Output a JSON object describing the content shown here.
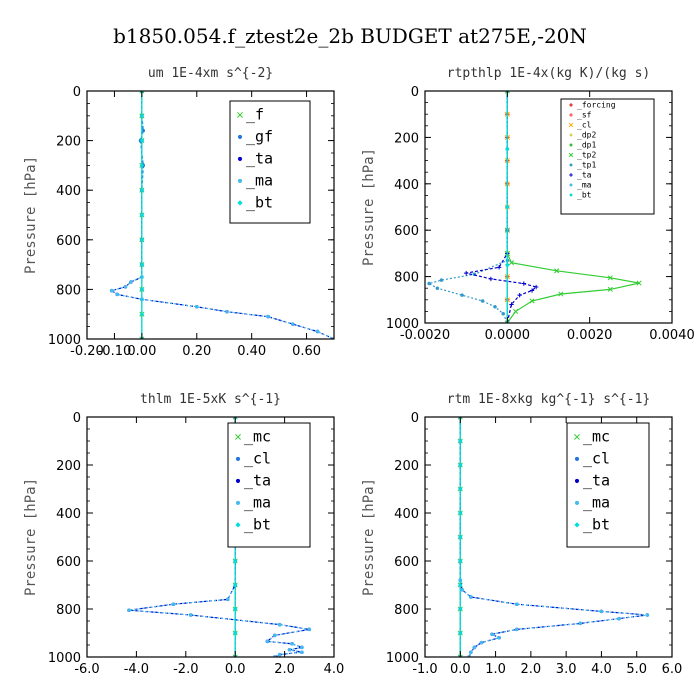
{
  "title": "b1850.054.f_ztest2e_2b  BUDGET at275E,-20N",
  "chart_data": [
    {
      "type": "line",
      "title": "um   1E-4xm s^{-2}",
      "ylabel": "Pressure [hPa]",
      "xlim": [
        -0.2,
        0.7
      ],
      "ylim": [
        1000,
        0
      ],
      "xticks": [
        "-0.20",
        "-0.10",
        "0.00",
        "0.20",
        "0.40",
        "0.60"
      ],
      "xtick_values": [
        -0.2,
        -0.1,
        0.0,
        0.2,
        0.4,
        0.6
      ],
      "yticks": [
        0,
        200,
        400,
        600,
        800,
        1000
      ],
      "legend": [
        "_f",
        "_gf",
        "_ta",
        "_ma",
        "_bt"
      ],
      "series": [
        {
          "name": "_f",
          "color": "#33cc33",
          "marker": "x",
          "dash": "none",
          "x": [
            0,
            0,
            0,
            0,
            0,
            0,
            0,
            0,
            0,
            0,
            0
          ],
          "y": [
            0,
            100,
            200,
            300,
            400,
            500,
            600,
            700,
            800,
            900,
            1000
          ]
        },
        {
          "name": "_gf",
          "color": "#2277dd",
          "marker": "dot",
          "dash": "3,2",
          "x": [
            0,
            0,
            0.005,
            -0.005,
            0.005,
            0,
            0,
            0,
            0,
            0,
            0
          ],
          "y": [
            0,
            100,
            160,
            200,
            300,
            400,
            500,
            600,
            700,
            800,
            1000
          ]
        },
        {
          "name": "_ta",
          "color": "#0000cc",
          "marker": "dot",
          "dash": "3,2",
          "x": [
            0,
            0,
            0,
            0,
            0,
            0,
            -0.04,
            -0.06,
            -0.11,
            -0.09,
            0.0,
            0.2,
            0.31,
            0.46,
            0.55,
            0.64,
            0.7
          ],
          "y": [
            0,
            200,
            400,
            600,
            700,
            750,
            770,
            790,
            805,
            820,
            840,
            870,
            890,
            910,
            940,
            970,
            1000
          ]
        },
        {
          "name": "_ma",
          "color": "#44bbee",
          "marker": "dot",
          "dash": "2,2",
          "x": [
            0,
            0,
            0,
            0,
            0,
            0,
            -0.04,
            -0.06,
            -0.11,
            -0.09,
            0.0,
            0.2,
            0.31,
            0.46,
            0.55,
            0.64,
            0.7
          ],
          "y": [
            0,
            200,
            400,
            600,
            700,
            750,
            770,
            790,
            805,
            820,
            840,
            870,
            890,
            910,
            940,
            970,
            1000
          ]
        },
        {
          "name": "_bt",
          "color": "#00dddd",
          "marker": "diamond",
          "dash": "none",
          "x": [
            0,
            0,
            0,
            0,
            0,
            0,
            0,
            0,
            0,
            0,
            0
          ],
          "y": [
            0,
            100,
            200,
            300,
            400,
            500,
            600,
            700,
            800,
            900,
            1000
          ]
        }
      ]
    },
    {
      "type": "line",
      "title": "rtpthlp   1E-4x(kg K)/(kg s)",
      "ylabel": "Pressure [hPa]",
      "xlim": [
        -0.002,
        0.004
      ],
      "ylim": [
        1000,
        0
      ],
      "xticks": [
        "-0.0020",
        "0.0000",
        "0.0020",
        "0.0040"
      ],
      "xtick_values": [
        -0.002,
        0.0,
        0.002,
        0.004
      ],
      "yticks": [
        0,
        200,
        400,
        600,
        800,
        1000
      ],
      "legend": [
        "_forcing",
        "_sf",
        "_cl",
        "_dp2",
        "_dp1",
        "_tp2",
        "_tp1",
        "_ta",
        "_ma",
        "_bt"
      ],
      "series": [
        {
          "name": "_forcing",
          "color": "#dd0000",
          "marker": "plus",
          "dash": "none",
          "x": [
            0,
            0,
            0,
            0,
            0,
            0,
            0,
            0,
            0,
            0,
            0
          ],
          "y": [
            0,
            100,
            200,
            300,
            400,
            500,
            600,
            700,
            800,
            900,
            1000
          ]
        },
        {
          "name": "_sf",
          "color": "#ff3333",
          "marker": "plus",
          "dash": "none",
          "x": [
            0,
            0,
            0,
            0,
            0,
            0,
            0,
            0,
            0,
            0,
            0
          ],
          "y": [
            0,
            100,
            200,
            300,
            400,
            500,
            600,
            700,
            800,
            900,
            1000
          ]
        },
        {
          "name": "_cl",
          "color": "#ffaa00",
          "marker": "x",
          "dash": "none",
          "x": [
            0,
            0,
            0,
            0,
            0,
            0,
            0,
            0,
            0,
            0,
            0
          ],
          "y": [
            0,
            100,
            200,
            300,
            400,
            500,
            600,
            700,
            800,
            900,
            1000
          ]
        },
        {
          "name": "_dp2",
          "color": "#ddcc55",
          "marker": "dot",
          "dash": "none",
          "x": [
            0,
            0,
            0,
            0,
            0
          ],
          "y": [
            0,
            250,
            500,
            750,
            1000
          ]
        },
        {
          "name": "_dp1",
          "color": "#33bb33",
          "marker": "dot",
          "dash": "none",
          "x": [
            0,
            0,
            0,
            0,
            0
          ],
          "y": [
            0,
            250,
            500,
            750,
            1000
          ]
        },
        {
          "name": "_tp2",
          "color": "#33cc33",
          "marker": "x",
          "dash": "none",
          "x": [
            0,
            0,
            0,
            0.0001,
            0.0012,
            0.0025,
            0.0032,
            0.0025,
            0.0013,
            0.0006,
            0.0002,
            0
          ],
          "y": [
            0,
            600,
            700,
            740,
            775,
            805,
            828,
            855,
            875,
            905,
            950,
            1000
          ]
        },
        {
          "name": "_tp1",
          "color": "#3399cc",
          "marker": "dot",
          "dash": "2,2",
          "x": [
            0,
            0,
            0,
            -0.0008,
            -0.0016,
            -0.0019,
            -0.0017,
            -0.0011,
            -0.0006,
            -0.0003,
            -0.0001,
            0
          ],
          "y": [
            0,
            600,
            730,
            790,
            815,
            830,
            850,
            880,
            905,
            930,
            960,
            1000
          ]
        },
        {
          "name": "_ta",
          "color": "#0000cc",
          "marker": "plus",
          "dash": "3,2",
          "x": [
            0,
            0,
            -0.0002,
            -0.001,
            -0.0004,
            0.0004,
            0.0007,
            0.0006,
            0.0003,
            0.0001,
            0
          ],
          "y": [
            0,
            700,
            760,
            785,
            810,
            830,
            845,
            860,
            880,
            920,
            1000
          ]
        },
        {
          "name": "_ma",
          "color": "#44bbee",
          "marker": "dot",
          "dash": "2,2",
          "x": [
            0,
            0,
            0,
            0,
            0
          ],
          "y": [
            0,
            250,
            500,
            750,
            1000
          ]
        },
        {
          "name": "_bt",
          "color": "#00dddd",
          "marker": "diamond",
          "dash": "none",
          "x": [
            0,
            0,
            0,
            0,
            0
          ],
          "y": [
            0,
            250,
            500,
            750,
            1000
          ]
        }
      ]
    },
    {
      "type": "line",
      "title": "thlm   1E-5xK s^{-1}",
      "ylabel": "Pressure [hPa]",
      "xlim": [
        -6.0,
        4.0
      ],
      "ylim": [
        1000,
        0
      ],
      "xticks": [
        "-6.0",
        "-4.0",
        "-2.0",
        "0.0",
        "2.0",
        "4.0"
      ],
      "xtick_values": [
        -6,
        -4,
        -2,
        0,
        2,
        4
      ],
      "yticks": [
        0,
        200,
        400,
        600,
        800,
        1000
      ],
      "legend": [
        "_mc",
        "_cl",
        "_ta",
        "_ma",
        "_bt"
      ],
      "series": [
        {
          "name": "_mc",
          "color": "#33cc33",
          "marker": "x",
          "dash": "none",
          "x": [
            0,
            0,
            0,
            0,
            0,
            0,
            0,
            0,
            0,
            0,
            0
          ],
          "y": [
            0,
            100,
            200,
            300,
            400,
            500,
            600,
            700,
            800,
            900,
            1000
          ]
        },
        {
          "name": "_cl",
          "color": "#2277dd",
          "marker": "dot",
          "dash": "3,2",
          "x": [
            0,
            0,
            0,
            0,
            0,
            0,
            0,
            0,
            0,
            0,
            0
          ],
          "y": [
            0,
            100,
            200,
            300,
            400,
            500,
            600,
            700,
            800,
            900,
            1000
          ]
        },
        {
          "name": "_ta",
          "color": "#0000cc",
          "marker": "dot",
          "dash": "3,2",
          "x": [
            0,
            0,
            0,
            -0.3,
            -2.5,
            -4.3,
            -1.8,
            1.8,
            3.0,
            1.6,
            1.3,
            2.3,
            2.7,
            2.2,
            2.7,
            1.8,
            1.6
          ],
          "y": [
            0,
            400,
            700,
            760,
            780,
            805,
            825,
            865,
            885,
            910,
            935,
            945,
            960,
            970,
            980,
            990,
            1000
          ]
        },
        {
          "name": "_ma",
          "color": "#44bbee",
          "marker": "dot",
          "dash": "2,2",
          "x": [
            0,
            0,
            0,
            -0.3,
            -2.5,
            -4.3,
            -1.8,
            1.8,
            3.0,
            1.6,
            1.3,
            2.3,
            2.7,
            2.2,
            2.7,
            1.8,
            1.6
          ],
          "y": [
            0,
            400,
            700,
            760,
            780,
            805,
            825,
            865,
            885,
            910,
            935,
            945,
            960,
            970,
            980,
            990,
            1000
          ]
        },
        {
          "name": "_bt",
          "color": "#00dddd",
          "marker": "diamond",
          "dash": "none",
          "x": [
            0,
            0,
            0,
            0,
            0,
            0,
            0,
            0,
            0,
            0,
            0
          ],
          "y": [
            0,
            100,
            200,
            300,
            400,
            500,
            600,
            700,
            800,
            900,
            1000
          ]
        }
      ]
    },
    {
      "type": "line",
      "title": "rtm   1E-8xkg kg^{-1} s^{-1}",
      "ylabel": "Pressure [hPa]",
      "xlim": [
        -1.0,
        6.0
      ],
      "ylim": [
        1000,
        0
      ],
      "xticks": [
        "-1.0",
        "0.0",
        "1.0",
        "2.0",
        "3.0",
        "4.0",
        "5.0",
        "6.0"
      ],
      "xtick_values": [
        -1,
        0,
        1,
        2,
        3,
        4,
        5,
        6
      ],
      "yticks": [
        0,
        200,
        400,
        600,
        800,
        1000
      ],
      "legend": [
        "_mc",
        "_cl",
        "_ta",
        "_ma",
        "_bt"
      ],
      "series": [
        {
          "name": "_mc",
          "color": "#33cc33",
          "marker": "x",
          "dash": "none",
          "x": [
            0,
            0,
            0,
            0,
            0,
            0,
            0,
            0,
            0,
            0,
            0
          ],
          "y": [
            0,
            100,
            200,
            300,
            400,
            500,
            600,
            700,
            800,
            900,
            1000
          ]
        },
        {
          "name": "_cl",
          "color": "#2277dd",
          "marker": "dot",
          "dash": "3,2",
          "x": [
            0,
            0,
            0,
            0,
            0,
            0,
            0,
            0,
            0,
            0,
            0
          ],
          "y": [
            0,
            100,
            200,
            300,
            400,
            500,
            600,
            700,
            800,
            900,
            1000
          ]
        },
        {
          "name": "_ta",
          "color": "#0000cc",
          "marker": "dot",
          "dash": "3,2",
          "x": [
            0,
            0,
            0,
            0.05,
            0.3,
            1.6,
            4.0,
            5.3,
            4.5,
            3.4,
            1.6,
            0.9,
            1.1,
            0.6,
            0.4,
            0.3,
            0.25
          ],
          "y": [
            0,
            500,
            680,
            720,
            750,
            780,
            810,
            825,
            840,
            860,
            885,
            905,
            920,
            940,
            960,
            980,
            1000
          ]
        },
        {
          "name": "_ma",
          "color": "#44bbee",
          "marker": "dot",
          "dash": "2,2",
          "x": [
            0,
            0,
            0,
            0.05,
            0.3,
            1.6,
            4.0,
            5.3,
            4.5,
            3.4,
            1.6,
            0.9,
            1.1,
            0.6,
            0.4,
            0.3,
            0.25
          ],
          "y": [
            0,
            500,
            680,
            720,
            750,
            780,
            810,
            825,
            840,
            860,
            885,
            905,
            920,
            940,
            960,
            980,
            1000
          ]
        },
        {
          "name": "_bt",
          "color": "#00dddd",
          "marker": "diamond",
          "dash": "none",
          "x": [
            0,
            0,
            0,
            0,
            0,
            0,
            0,
            0,
            0,
            0,
            0
          ],
          "y": [
            0,
            100,
            200,
            300,
            400,
            500,
            600,
            700,
            800,
            900,
            1000
          ]
        }
      ]
    }
  ]
}
